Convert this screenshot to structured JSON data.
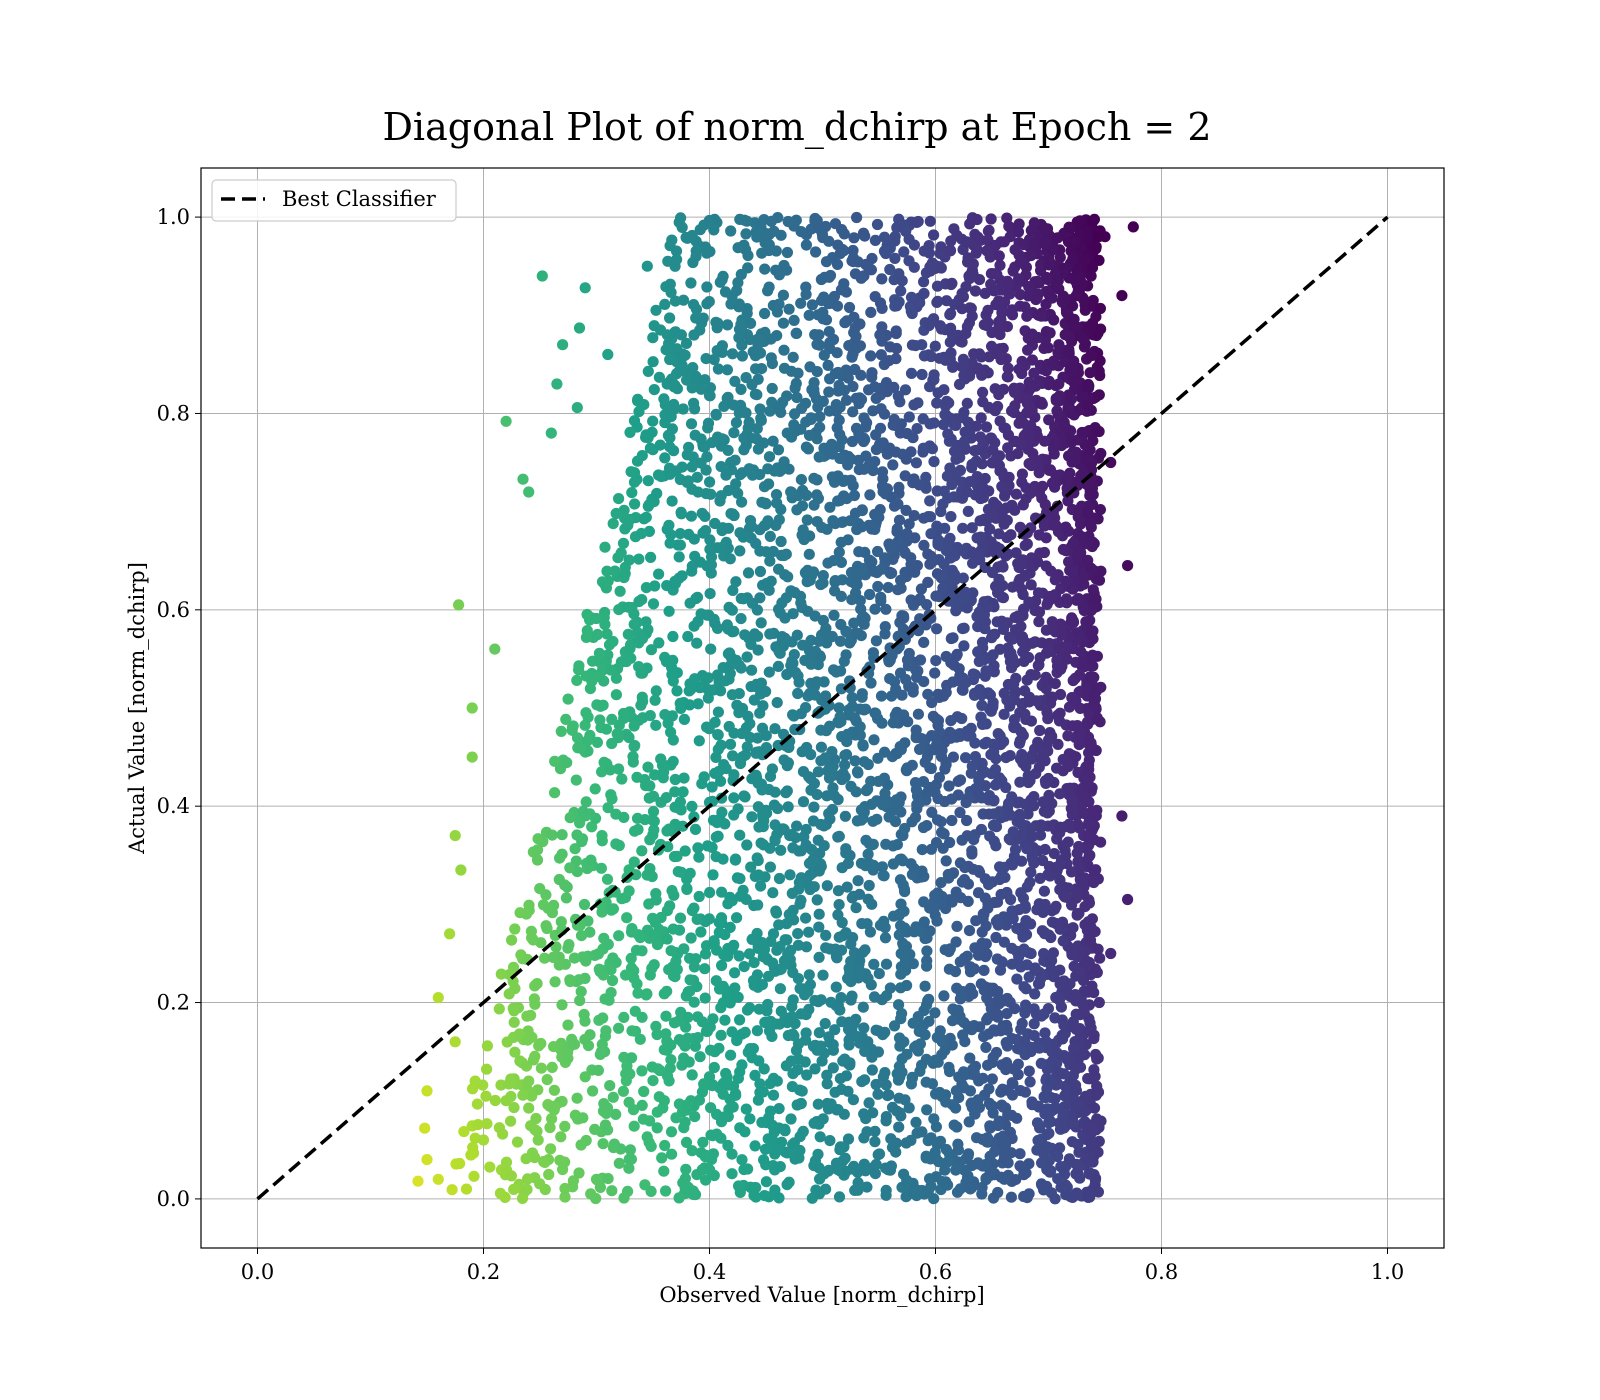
{
  "chart_data": {
    "type": "scatter",
    "title": "Diagonal Plot of norm_dchirp at Epoch = 2",
    "xlabel": "Observed Value [norm_dchirp]",
    "ylabel": "Actual Value [norm_dchirp]",
    "xlim": [
      -0.05,
      1.05
    ],
    "ylim": [
      -0.05,
      1.05
    ],
    "xticks": [
      "0.0",
      "0.2",
      "0.4",
      "0.6",
      "0.8",
      "1.0"
    ],
    "yticks": [
      "0.0",
      "0.2",
      "0.4",
      "0.6",
      "0.8",
      "1.0"
    ],
    "grid": true,
    "legend": {
      "position": "upper-left",
      "entries": [
        "Best Classifier"
      ]
    },
    "reference_line": {
      "name": "Best Classifier",
      "x": [
        0.0,
        1.0
      ],
      "y": [
        0.0,
        1.0
      ],
      "style": "dashed",
      "color": "#000000"
    },
    "colormap": "viridis",
    "scatter_summary": {
      "x_range": [
        0.14,
        0.77
      ],
      "y_range": [
        0.0,
        1.0
      ],
      "dense_x_range": [
        0.4,
        0.74
      ],
      "colour_trend": "yellow-green at low observed values, dark purple at high observed values"
    },
    "series": [
      {
        "values": [
          [
            0.178,
            0.605
          ],
          [
            0.22,
            0.792
          ],
          [
            0.252,
            0.94
          ],
          [
            0.29,
            0.928
          ],
          [
            0.27,
            0.87
          ],
          [
            0.285,
            0.887
          ],
          [
            0.265,
            0.83
          ],
          [
            0.31,
            0.86
          ],
          [
            0.235,
            0.733
          ],
          [
            0.24,
            0.72
          ],
          [
            0.26,
            0.78
          ],
          [
            0.283,
            0.806
          ],
          [
            0.345,
            0.95
          ],
          [
            0.19,
            0.5
          ],
          [
            0.19,
            0.45
          ],
          [
            0.21,
            0.56
          ],
          [
            0.175,
            0.37
          ],
          [
            0.18,
            0.335
          ],
          [
            0.17,
            0.27
          ],
          [
            0.16,
            0.205
          ],
          [
            0.15,
            0.11
          ],
          [
            0.148,
            0.072
          ],
          [
            0.142,
            0.018
          ],
          [
            0.15,
            0.04
          ],
          [
            0.16,
            0.02
          ],
          [
            0.175,
            0.16
          ],
          [
            0.185,
            0.01
          ],
          [
            0.2,
            0.06
          ],
          [
            0.22,
            0.1
          ],
          [
            0.24,
            0.12
          ],
          [
            0.27,
            0.03
          ],
          [
            0.3,
            0.02
          ],
          [
            0.33,
            0.05
          ],
          [
            0.36,
            0.1
          ],
          [
            0.46,
            0.12
          ],
          [
            0.75,
            0.98
          ],
          [
            0.765,
            0.92
          ],
          [
            0.755,
            0.75
          ],
          [
            0.77,
            0.645
          ],
          [
            0.765,
            0.39
          ],
          [
            0.77,
            0.305
          ],
          [
            0.755,
            0.25
          ],
          [
            0.775,
            0.99
          ],
          [
            0.745,
            0.2
          ],
          [
            0.74,
            0.07
          ]
        ]
      }
    ]
  }
}
